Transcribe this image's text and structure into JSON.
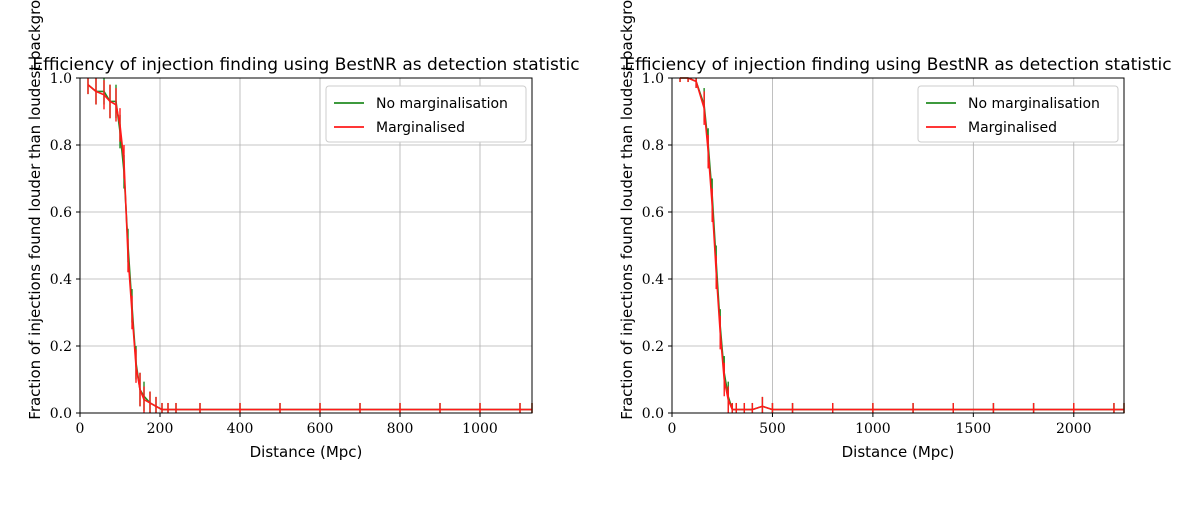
{
  "colors": {
    "no_marginalisation": "#228b22",
    "marginalised": "#ff1a1a",
    "grid": "#b0b0b0"
  },
  "chart_data": [
    {
      "type": "line",
      "title": "Efficiency of injection finding using BestNR as detection statistic",
      "xlabel": "Distance (Mpc)",
      "ylabel": "Fraction of injections found louder than loudest background",
      "xlim": [
        0,
        1130
      ],
      "ylim": [
        0,
        1.0
      ],
      "xticks": [
        0,
        200,
        400,
        600,
        800,
        1000
      ],
      "yticks": [
        0.0,
        0.2,
        0.4,
        0.6,
        0.8,
        1.0
      ],
      "xtick_labels": [
        "0",
        "200",
        "400",
        "600",
        "800",
        "1000"
      ],
      "ytick_labels": [
        "0.0",
        "0.2",
        "0.4",
        "0.6",
        "0.8",
        "1.0"
      ],
      "grid": true,
      "legend_position": "top-right",
      "series": [
        {
          "name": "No marginalisation",
          "x": [
            20,
            40,
            60,
            75,
            90,
            100,
            110,
            120,
            130,
            140,
            150,
            160,
            175,
            190,
            205,
            220,
            240,
            300,
            400,
            500,
            600,
            700,
            800,
            900,
            1000,
            1100,
            1130
          ],
          "y": [
            0.98,
            0.96,
            0.96,
            0.93,
            0.93,
            0.84,
            0.72,
            0.5,
            0.32,
            0.15,
            0.07,
            0.05,
            0.03,
            0.02,
            0.01,
            0.01,
            0.01,
            0.01,
            0.01,
            0.01,
            0.01,
            0.01,
            0.01,
            0.01,
            0.01,
            0.01,
            0.01
          ]
        },
        {
          "name": "Marginalised",
          "x": [
            20,
            40,
            60,
            75,
            90,
            100,
            110,
            120,
            130,
            140,
            150,
            160,
            175,
            190,
            205,
            220,
            240,
            300,
            400,
            500,
            600,
            700,
            800,
            900,
            1000,
            1100,
            1130
          ],
          "y": [
            0.98,
            0.96,
            0.95,
            0.93,
            0.92,
            0.86,
            0.75,
            0.47,
            0.3,
            0.14,
            0.07,
            0.04,
            0.03,
            0.02,
            0.01,
            0.01,
            0.01,
            0.01,
            0.01,
            0.01,
            0.01,
            0.01,
            0.01,
            0.01,
            0.01,
            0.01,
            0.01
          ]
        }
      ]
    },
    {
      "type": "line",
      "title": "Efficiency of injection finding using BestNR as detection statistic",
      "xlabel": "Distance (Mpc)",
      "ylabel": "Fraction of injections found louder than loudest background",
      "xlim": [
        0,
        2250
      ],
      "ylim": [
        0,
        1.0
      ],
      "xticks": [
        0,
        500,
        1000,
        1500,
        2000
      ],
      "yticks": [
        0.0,
        0.2,
        0.4,
        0.6,
        0.8,
        1.0
      ],
      "xtick_labels": [
        "0",
        "500",
        "1000",
        "1500",
        "2000"
      ],
      "ytick_labels": [
        "0.0",
        "0.2",
        "0.4",
        "0.6",
        "0.8",
        "1.0"
      ],
      "grid": true,
      "legend_position": "top-right",
      "series": [
        {
          "name": "No marginalisation",
          "x": [
            40,
            80,
            120,
            160,
            180,
            200,
            220,
            240,
            260,
            280,
            300,
            320,
            360,
            400,
            450,
            500,
            600,
            800,
            1000,
            1200,
            1400,
            1600,
            1800,
            2000,
            2200,
            2250
          ],
          "y": [
            1.0,
            1.0,
            0.99,
            0.92,
            0.8,
            0.65,
            0.45,
            0.26,
            0.12,
            0.05,
            0.01,
            0.01,
            0.01,
            0.01,
            0.02,
            0.01,
            0.01,
            0.01,
            0.01,
            0.01,
            0.01,
            0.01,
            0.01,
            0.01,
            0.01,
            0.01
          ]
        },
        {
          "name": "Marginalised",
          "x": [
            40,
            80,
            120,
            160,
            180,
            200,
            220,
            240,
            260,
            280,
            300,
            320,
            360,
            400,
            450,
            500,
            600,
            800,
            1000,
            1200,
            1400,
            1600,
            1800,
            2000,
            2200,
            2250
          ],
          "y": [
            1.0,
            1.0,
            0.99,
            0.91,
            0.78,
            0.62,
            0.42,
            0.24,
            0.1,
            0.04,
            0.01,
            0.01,
            0.01,
            0.01,
            0.02,
            0.01,
            0.01,
            0.01,
            0.01,
            0.01,
            0.01,
            0.01,
            0.01,
            0.01,
            0.01,
            0.01
          ]
        }
      ]
    }
  ]
}
